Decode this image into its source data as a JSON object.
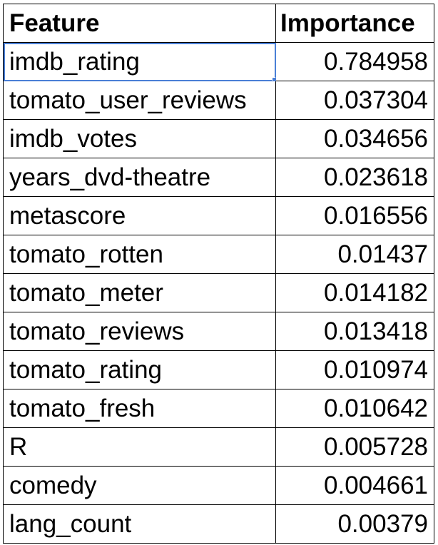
{
  "table": {
    "headers": [
      "Feature",
      "Importance"
    ],
    "rows": [
      {
        "feature": "imdb_rating",
        "importance": "0.784958"
      },
      {
        "feature": "tomato_user_reviews",
        "importance": "0.037304"
      },
      {
        "feature": "imdb_votes",
        "importance": "0.034656"
      },
      {
        "feature": "years_dvd-theatre",
        "importance": "0.023618"
      },
      {
        "feature": "metascore",
        "importance": "0.016556"
      },
      {
        "feature": "tomato_rotten",
        "importance": "0.01437"
      },
      {
        "feature": "tomato_meter",
        "importance": "0.014182"
      },
      {
        "feature": "tomato_reviews",
        "importance": "0.013418"
      },
      {
        "feature": "tomato_rating",
        "importance": "0.010974"
      },
      {
        "feature": "tomato_fresh",
        "importance": "0.010642"
      },
      {
        "feature": "R",
        "importance": "0.005728"
      },
      {
        "feature": "comedy",
        "importance": "0.004661"
      },
      {
        "feature": "lang_count",
        "importance": "0.00379"
      }
    ]
  },
  "colors": {
    "selection": "#4a7fd6",
    "grid_line": "#000000"
  }
}
